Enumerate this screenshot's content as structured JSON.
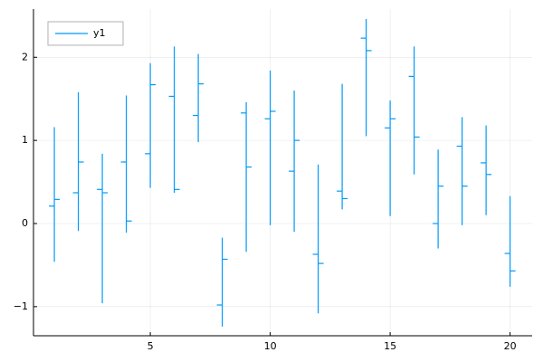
{
  "chart_data": {
    "type": "ohlc",
    "x": [
      1,
      2,
      3,
      4,
      5,
      6,
      7,
      8,
      9,
      10,
      11,
      12,
      13,
      14,
      15,
      16,
      17,
      18,
      19,
      20
    ],
    "series": [
      {
        "name": "y1",
        "color": "#009af9",
        "open": [
          0.21,
          0.37,
          0.41,
          0.74,
          0.84,
          1.53,
          1.3,
          -0.98,
          1.33,
          1.26,
          0.63,
          -0.37,
          0.39,
          2.23,
          1.15,
          1.77,
          0.0,
          0.93,
          0.73,
          -0.36
        ],
        "high": [
          1.16,
          1.58,
          0.84,
          1.54,
          1.93,
          2.13,
          2.04,
          -0.17,
          1.46,
          1.84,
          1.6,
          0.71,
          1.68,
          2.46,
          1.48,
          2.13,
          0.89,
          1.28,
          1.18,
          0.33
        ],
        "low": [
          -0.46,
          -0.09,
          -0.96,
          -0.11,
          0.43,
          0.37,
          0.98,
          -1.24,
          -0.34,
          -0.02,
          -0.1,
          -1.08,
          0.17,
          1.05,
          0.09,
          0.59,
          -0.3,
          -0.02,
          0.1,
          -0.76
        ],
        "close": [
          0.29,
          0.74,
          0.37,
          0.03,
          1.67,
          0.41,
          1.68,
          -0.43,
          0.68,
          1.35,
          1.0,
          -0.48,
          0.3,
          2.08,
          1.26,
          1.04,
          0.45,
          0.45,
          0.59,
          -0.57
        ]
      }
    ],
    "xlim": [
      0.13,
      20.92
    ],
    "ylim": [
      -1.35,
      2.58
    ],
    "xticks": [
      5,
      10,
      15,
      20
    ],
    "yticks": [
      {
        "value": -1,
        "label": "−1"
      },
      0,
      1,
      2
    ],
    "grid": true,
    "legend": "top-left"
  }
}
